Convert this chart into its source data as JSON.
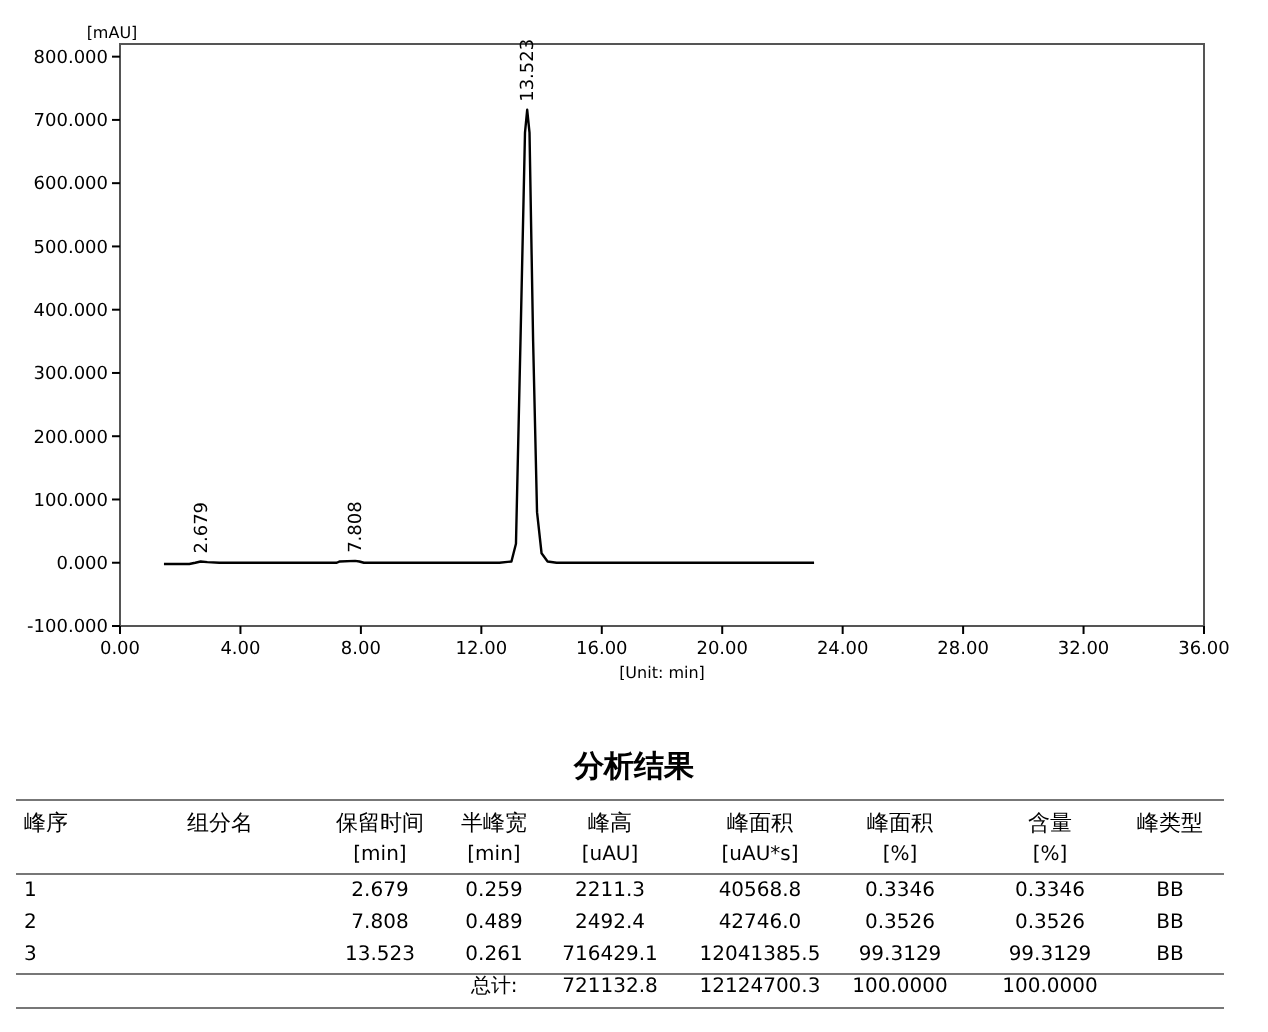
{
  "chart_data": [
    {
      "type": "line",
      "xlabel": "[Unit: min]",
      "ylabel": "[mAU]",
      "xlim": [
        0,
        36
      ],
      "ylim": [
        -100,
        820
      ],
      "xticks": [
        {
          "value": 0,
          "label": "0.00"
        },
        {
          "value": 4,
          "label": "4.00"
        },
        {
          "value": 8,
          "label": "8.00"
        },
        {
          "value": 12,
          "label": "12.00"
        },
        {
          "value": 16,
          "label": "16.00"
        },
        {
          "value": 20,
          "label": "20.00"
        },
        {
          "value": 24,
          "label": "24.00"
        },
        {
          "value": 28,
          "label": "28.00"
        },
        {
          "value": 32,
          "label": "32.00"
        },
        {
          "value": 36,
          "label": "36.00"
        }
      ],
      "yticks": [
        {
          "value": -100,
          "label": "-100.000"
        },
        {
          "value": 0,
          "label": "0.000"
        },
        {
          "value": 100,
          "label": "100.000"
        },
        {
          "value": 200,
          "label": "200.000"
        },
        {
          "value": 300,
          "label": "300.000"
        },
        {
          "value": 400,
          "label": "400.000"
        },
        {
          "value": 500,
          "label": "500.000"
        },
        {
          "value": 600,
          "label": "600.000"
        },
        {
          "value": 700,
          "label": "700.000"
        },
        {
          "value": 800,
          "label": "800.000"
        }
      ],
      "series": [
        {
          "color": "#000000",
          "x": [
            1.46,
            2.3,
            2.5,
            2.679,
            2.9,
            3.3,
            7.2,
            7.3,
            7.808,
            7.95,
            8.1,
            12.6,
            13.0,
            13.15,
            13.3,
            13.45,
            13.523,
            13.6,
            13.72,
            13.85,
            14.0,
            14.2,
            14.5,
            23.05
          ],
          "values": [
            -2,
            -2,
            0,
            2,
            1,
            0,
            0,
            2,
            3,
            2,
            0,
            0,
            2,
            30,
            350,
            680,
            716,
            680,
            350,
            80,
            15,
            2,
            0,
            0
          ]
        }
      ],
      "annotations": [
        {
          "text": "2.679",
          "x": 2.679,
          "y": 2
        },
        {
          "text": "7.808",
          "x": 7.808,
          "y": 3
        },
        {
          "text": "13.523",
          "x": 13.523,
          "y": 716
        }
      ]
    },
    {
      "type": "other",
      "title": "分析结果",
      "annotations": [
        "峰序",
        "组分名",
        "保留时间",
        "半峰宽",
        "峰高",
        "峰面积",
        "峰面积",
        "含量",
        "峰类型",
        "[min]",
        "[min]",
        "[uAU]",
        "[uAU*s]",
        "[%]",
        "[%]",
        "1",
        "2.679",
        "0.259",
        "2211.3",
        "40568.8",
        "0.3346",
        "0.3346",
        "BB",
        "2",
        "7.808",
        "0.489",
        "2492.4",
        "42746.0",
        "0.3526",
        "0.3526",
        "BB",
        "3",
        "13.523",
        "0.261",
        "716429.1",
        "12041385.5",
        "99.3129",
        "99.3129",
        "BB",
        "总计:",
        "721132.8",
        "12124700.3",
        "100.0000",
        "100.0000"
      ]
    }
  ]
}
